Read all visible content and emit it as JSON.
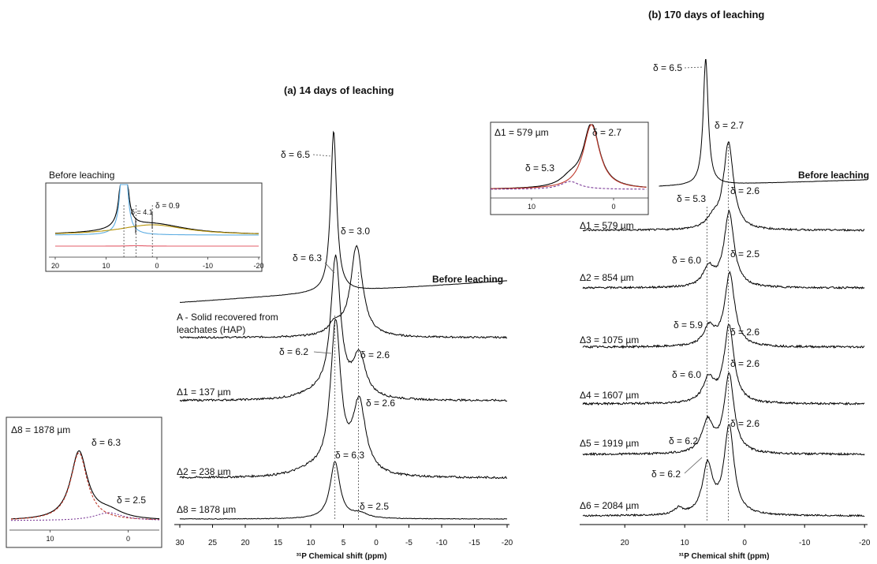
{
  "figure": {
    "panel_a": {
      "title": "(a) 14 days of leaching",
      "xlabel": "³¹P Chemical shift (ppm)",
      "x_ticks": [
        "30",
        "25",
        "20",
        "15",
        "10",
        "5",
        "0",
        "-5",
        "-10",
        "-15",
        "-20"
      ],
      "spectra": [
        {
          "label": "Before leaching",
          "peaks": [
            {
              "text": "δ = 6.5"
            }
          ]
        },
        {
          "label": "A - Solid recovered from leachates (HAP)",
          "label_lines": [
            "A - Solid recovered from",
            "leachates (HAP)"
          ],
          "peaks": [
            {
              "text": "δ = 6.3"
            },
            {
              "text": "δ = 3.0"
            }
          ]
        },
        {
          "label": "Δ1 = 137 µm",
          "peaks": [
            {
              "text": "δ = 6.2"
            },
            {
              "text": "δ = 2.6"
            }
          ]
        },
        {
          "label": "Δ2 = 238 µm",
          "peaks": [
            {
              "text": "δ = 2.6"
            }
          ]
        },
        {
          "label": "Δ8 = 1878 µm",
          "peaks": [
            {
              "text": "δ = 6.3"
            },
            {
              "text": "δ = 2.5"
            }
          ]
        }
      ],
      "inset_before": {
        "title": "Before leaching",
        "peaks": [
          "δ = 4.1",
          "δ = 0.9"
        ],
        "x_ticks": [
          "20",
          "10",
          "0",
          "-10",
          "-20"
        ]
      },
      "inset_d8": {
        "title": "Δ8 = 1878 µm",
        "peaks": [
          "δ = 6.3",
          "δ = 2.5"
        ],
        "x_ticks": [
          "10",
          "0"
        ]
      }
    },
    "panel_b": {
      "title": "(b) 170 days of leaching",
      "xlabel": "³¹P Chemical shift (ppm)",
      "x_ticks": [
        "20",
        "10",
        "0",
        "-10",
        "-20"
      ],
      "spectra": [
        {
          "label": "Before leaching",
          "peaks": [
            {
              "text": "δ = 6.5"
            }
          ]
        },
        {
          "label": "Δ1 = 579 µm",
          "peaks": [
            {
              "text": "δ = 2.7"
            },
            {
              "text": "δ = 5.3"
            }
          ]
        },
        {
          "label": "Δ2 = 854 µm",
          "peaks": [
            {
              "text": "δ = 2.6"
            },
            {
              "text": "δ = 6.0"
            }
          ]
        },
        {
          "label": "Δ3 = 1075 µm",
          "peaks": [
            {
              "text": "δ = 2.5"
            },
            {
              "text": "δ = 5.9"
            }
          ]
        },
        {
          "label": "Δ4 = 1607 µm",
          "peaks": [
            {
              "text": "δ = 2.6"
            },
            {
              "text": "δ = 6.0"
            }
          ]
        },
        {
          "label": "Δ5 = 1919 µm",
          "peaks": [
            {
              "text": "δ = 2.6"
            },
            {
              "text": "δ = 6.2"
            }
          ]
        },
        {
          "label": "Δ6 = 2084 µm",
          "peaks": [
            {
              "text": "δ = 2.6"
            },
            {
              "text": "δ = 6.2"
            }
          ]
        }
      ],
      "inset_d1": {
        "title": "Δ1 = 579 µm",
        "peaks": [
          "δ = 5.3",
          "δ = 2.7"
        ],
        "x_ticks": [
          "10",
          "0"
        ]
      }
    }
  },
  "chart_data": [
    {
      "type": "line",
      "title": "(a) 14 days of leaching",
      "xlabel": "³¹P Chemical shift (ppm)",
      "ylabel": "",
      "xlim": [
        30,
        -20
      ],
      "series": [
        {
          "name": "Before leaching",
          "peaks_ppm": [
            6.5,
            4.1,
            0.9
          ],
          "relative_intensity": [
            1.0,
            0.05,
            0.05
          ]
        },
        {
          "name": "A - Solid recovered from leachates (HAP)",
          "peaks_ppm": [
            6.3,
            3.0
          ],
          "relative_intensity": [
            0.15,
            0.8
          ]
        },
        {
          "name": "Δ1 = 137 µm",
          "peaks_ppm": [
            6.2,
            2.6
          ],
          "relative_intensity": [
            0.95,
            0.35
          ]
        },
        {
          "name": "Δ2 = 238 µm",
          "peaks_ppm": [
            6.2,
            2.6
          ],
          "relative_intensity": [
            0.95,
            0.45
          ]
        },
        {
          "name": "Δ8 = 1878 µm",
          "peaks_ppm": [
            6.3,
            2.5
          ],
          "relative_intensity": [
            0.95,
            0.05
          ]
        }
      ]
    },
    {
      "type": "line",
      "title": "(b) 170 days of leaching",
      "xlabel": "³¹P Chemical shift (ppm)",
      "ylabel": "",
      "xlim": [
        27,
        -20
      ],
      "series": [
        {
          "name": "Before leaching",
          "peaks_ppm": [
            6.5
          ],
          "relative_intensity": [
            1.0
          ]
        },
        {
          "name": "Δ1 = 579 µm",
          "peaks_ppm": [
            2.7,
            5.3
          ],
          "relative_intensity": [
            1.0,
            0.12
          ]
        },
        {
          "name": "Δ2 = 854 µm",
          "peaks_ppm": [
            2.6,
            6.0
          ],
          "relative_intensity": [
            1.0,
            0.2
          ]
        },
        {
          "name": "Δ3 = 1075 µm",
          "peaks_ppm": [
            2.5,
            5.9
          ],
          "relative_intensity": [
            1.0,
            0.2
          ]
        },
        {
          "name": "Δ4 = 1607 µm",
          "peaks_ppm": [
            2.6,
            6.0
          ],
          "relative_intensity": [
            1.0,
            0.3
          ]
        },
        {
          "name": "Δ5 = 1919 µm",
          "peaks_ppm": [
            2.6,
            6.2
          ],
          "relative_intensity": [
            1.0,
            0.45
          ]
        },
        {
          "name": "Δ6 = 2084 µm",
          "peaks_ppm": [
            2.6,
            6.2
          ],
          "relative_intensity": [
            1.0,
            0.6
          ]
        }
      ]
    }
  ],
  "colors": {
    "trace": "#000000",
    "fit_red": "#c0392b",
    "fit_purple": "#7d3c98",
    "fit_blue": "#5dade2",
    "fit_olive": "#b7950b",
    "pink": "#e35d6a"
  }
}
